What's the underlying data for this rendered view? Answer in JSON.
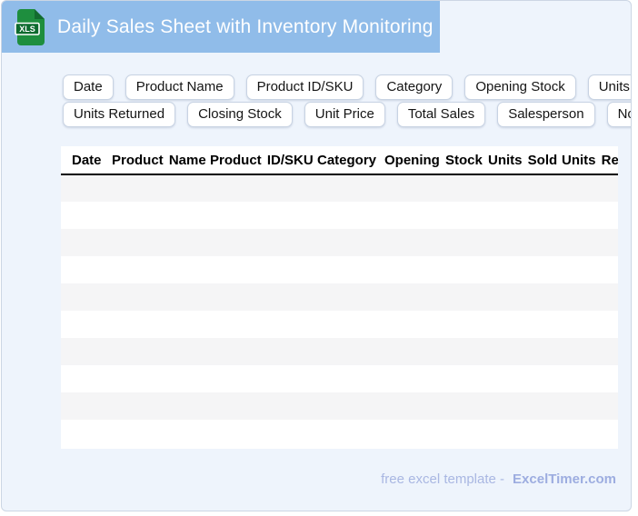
{
  "window": {
    "background_color": "#eef4fc",
    "border_color": "#ccd6e4"
  },
  "header": {
    "title": "Daily Sales Sheet with Inventory Monitoring",
    "file_icon_label": "XLS",
    "accent_color": "#90bce9",
    "icon_green": "#1e8e3e",
    "icon_dark_green": "#0d6a2e"
  },
  "field_buttons": [
    "Date",
    "Product Name",
    "Product ID/SKU",
    "Category",
    "Opening Stock",
    "Units Sold",
    "Units Returned",
    "Closing Stock",
    "Unit Price",
    "Total Sales",
    "Salesperson",
    "Notes"
  ],
  "table": {
    "columns": [
      "Date",
      "Product Name",
      "Product ID/SKU",
      "Category",
      "Opening Stock",
      "Units Sold",
      "Units Returned"
    ],
    "empty_row_count": 10
  },
  "footer": {
    "caption": "free excel template -",
    "brand": "ExcelTimer.com"
  }
}
